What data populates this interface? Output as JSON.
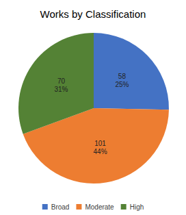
{
  "chart_data": {
    "type": "pie",
    "title": "Works by Classification",
    "categories": [
      "Broad",
      "Moderate",
      "High"
    ],
    "values": [
      58,
      101,
      70
    ],
    "percentage_labels": [
      "25%",
      "44%",
      "31%"
    ],
    "colors": [
      "#4472c4",
      "#ed7d31",
      "#548235"
    ],
    "data_labels": true,
    "legend": "bottom"
  }
}
